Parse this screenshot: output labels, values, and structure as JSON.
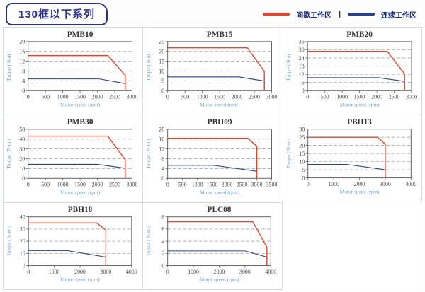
{
  "header": {
    "title": "130框以下系列",
    "legend": {
      "items": [
        {
          "label": "间歇工作区",
          "color": "#e8432a"
        },
        {
          "label": "连续工作区",
          "color": "#27408f"
        }
      ],
      "divider": "|"
    }
  },
  "colors": {
    "accent_navy": "#2e3192",
    "legend_text": "#1b2f7e",
    "intermittent_line": "#e8432a",
    "continuous_line": "#27408f",
    "grid_line": "#9a9a9a",
    "plot_border": "#5f6368",
    "tick_text": "#4a4a4a",
    "axis_label_text": "#6f9fd6",
    "chart_title_text": "#333333",
    "cell_border": "#d5dbe6"
  },
  "chart_data": [
    {
      "type": "line",
      "title": "PMB10",
      "xlabel": "Motor speed (rpm)",
      "ylabel": "Torque ( N·m )",
      "xlim": [
        0,
        3000
      ],
      "xticks": [
        0,
        500,
        1000,
        1500,
        2000,
        2500,
        3000
      ],
      "ylim": [
        0,
        20
      ],
      "yticks": [
        0,
        4,
        8,
        12,
        16,
        20
      ],
      "grid": "dashed-horizontal",
      "legend_position": "none",
      "series": [
        {
          "name": "间歇工作区",
          "color": "#e8432a",
          "points": [
            [
              0,
              14.3
            ],
            [
              2300,
              14.3
            ],
            [
              2800,
              6.3
            ],
            [
              2800,
              0
            ]
          ]
        },
        {
          "name": "连续工作区",
          "color": "#27408f",
          "points": [
            [
              0,
              4.8
            ],
            [
              2050,
              4.8
            ],
            [
              2800,
              2.9
            ],
            [
              2800,
              0
            ]
          ]
        }
      ]
    },
    {
      "type": "line",
      "title": "PMB15",
      "xlabel": "Motor speed (rpm)",
      "ylabel": "Torque ( N·m )",
      "xlim": [
        0,
        3000
      ],
      "xticks": [
        0,
        500,
        1000,
        1500,
        2000,
        2500,
        3000
      ],
      "ylim": [
        0,
        25
      ],
      "yticks": [
        0,
        5,
        10,
        15,
        20,
        25
      ],
      "grid": "dashed-horizontal",
      "legend_position": "none",
      "series": [
        {
          "name": "间歇工作区",
          "color": "#e8432a",
          "points": [
            [
              0,
              21.8
            ],
            [
              2300,
              21.8
            ],
            [
              2790,
              9.8
            ],
            [
              2790,
              0
            ]
          ]
        },
        {
          "name": "连续工作区",
          "color": "#27408f",
          "points": [
            [
              0,
              7
            ],
            [
              2050,
              7
            ],
            [
              2790,
              4.9
            ],
            [
              2790,
              0
            ]
          ]
        }
      ]
    },
    {
      "type": "line",
      "title": "PMB20",
      "xlabel": "Motor speed (rpm)",
      "ylabel": "Torque ( N·m )",
      "xlim": [
        0,
        3000
      ],
      "xticks": [
        0,
        500,
        1000,
        1500,
        2000,
        2500,
        3000
      ],
      "ylim": [
        0,
        36
      ],
      "yticks": [
        0,
        6,
        12,
        18,
        24,
        30,
        36
      ],
      "grid": "dashed-horizontal",
      "legend_position": "none",
      "series": [
        {
          "name": "间歇工作区",
          "color": "#e8432a",
          "points": [
            [
              0,
              28.8
            ],
            [
              2300,
              28.8
            ],
            [
              2800,
              12.3
            ],
            [
              2800,
              0
            ]
          ]
        },
        {
          "name": "连续工作区",
          "color": "#27408f",
          "points": [
            [
              0,
              9.5
            ],
            [
              2050,
              9.5
            ],
            [
              2800,
              6.8
            ],
            [
              2800,
              0
            ]
          ]
        }
      ]
    },
    {
      "type": "line",
      "title": "PMB30",
      "xlabel": "Motor speed (rpm)",
      "ylabel": "Torque ( N·m )",
      "xlim": [
        0,
        3000
      ],
      "xticks": [
        0,
        500,
        1000,
        1500,
        2000,
        2500,
        3000
      ],
      "ylim": [
        0,
        50
      ],
      "yticks": [
        0,
        10,
        20,
        30,
        40,
        50
      ],
      "grid": "dashed-horizontal",
      "legend_position": "none",
      "series": [
        {
          "name": "间歇工作区",
          "color": "#e8432a",
          "points": [
            [
              0,
              43
            ],
            [
              2300,
              43
            ],
            [
              2800,
              19
            ],
            [
              2800,
              0
            ]
          ]
        },
        {
          "name": "连续工作区",
          "color": "#27408f",
          "points": [
            [
              0,
              14.3
            ],
            [
              2000,
              14.3
            ],
            [
              2800,
              10.3
            ],
            [
              2800,
              0
            ]
          ]
        }
      ]
    },
    {
      "type": "line",
      "title": "PBH09",
      "xlabel": "Motor speed (rpm)",
      "ylabel": "Torque ( N·m )",
      "xlim": [
        0,
        3500
      ],
      "xticks": [
        0,
        500,
        1000,
        1500,
        2000,
        2500,
        3000,
        3500
      ],
      "ylim": [
        0,
        20
      ],
      "yticks": [
        0,
        4,
        8,
        12,
        16,
        20
      ],
      "grid": "dashed-horizontal",
      "legend_position": "none",
      "series": [
        {
          "name": "间歇工作区",
          "color": "#e8432a",
          "points": [
            [
              0,
              16.3
            ],
            [
              2700,
              16.3
            ],
            [
              3000,
              13.1
            ],
            [
              3000,
              0
            ]
          ]
        },
        {
          "name": "连续工作区",
          "color": "#27408f",
          "points": [
            [
              0,
              5.3
            ],
            [
              1550,
              5.3
            ],
            [
              3000,
              2.9
            ],
            [
              3000,
              0
            ]
          ]
        }
      ]
    },
    {
      "type": "line",
      "title": "PBH13",
      "xlabel": "Motor speed (rpm)",
      "ylabel": "Torque ( N·m )",
      "xlim": [
        0,
        4000
      ],
      "xticks": [
        0,
        1000,
        2000,
        3000,
        4000
      ],
      "ylim": [
        0,
        30
      ],
      "yticks": [
        0,
        5,
        10,
        15,
        20,
        25,
        30
      ],
      "grid": "dashed-horizontal",
      "legend_position": "none",
      "series": [
        {
          "name": "间歇工作区",
          "color": "#e8432a",
          "points": [
            [
              0,
              25
            ],
            [
              2700,
              25
            ],
            [
              3000,
              20.8
            ],
            [
              3000,
              0
            ]
          ]
        },
        {
          "name": "连续工作区",
          "color": "#27408f",
          "points": [
            [
              0,
              8.3
            ],
            [
              1500,
              8.3
            ],
            [
              3000,
              5
            ],
            [
              3000,
              0
            ]
          ]
        }
      ]
    },
    {
      "type": "line",
      "title": "PBH18",
      "xlabel": "Motor speed (rpm)",
      "ylabel": "Torque ( N·m )",
      "xlim": [
        0,
        4000
      ],
      "xticks": [
        0,
        1000,
        2000,
        3000,
        4000
      ],
      "ylim": [
        0,
        40
      ],
      "yticks": [
        0,
        10,
        20,
        30,
        40
      ],
      "grid": "dashed-horizontal",
      "legend_position": "none",
      "series": [
        {
          "name": "间歇工作区",
          "color": "#e8432a",
          "points": [
            [
              0,
              35
            ],
            [
              2650,
              35
            ],
            [
              3000,
              29
            ],
            [
              3000,
              0
            ]
          ]
        },
        {
          "name": "连续工作区",
          "color": "#27408f",
          "points": [
            [
              0,
              12.3
            ],
            [
              1500,
              12.3
            ],
            [
              3000,
              7
            ],
            [
              3000,
              0
            ]
          ]
        }
      ]
    },
    {
      "type": "line",
      "title": "PLC08",
      "xlabel": "Motor speed (rpm)",
      "ylabel": "Torque ( N·m )",
      "xlim": [
        0,
        4000
      ],
      "xticks": [
        0,
        1000,
        2000,
        3000,
        4000
      ],
      "ylim": [
        0,
        8
      ],
      "yticks": [
        0,
        2,
        4,
        6,
        8
      ],
      "grid": "dashed-horizontal",
      "legend_position": "none",
      "series": [
        {
          "name": "间歇工作区",
          "color": "#e8432a",
          "points": [
            [
              0,
              7.2
            ],
            [
              3300,
              7.2
            ],
            [
              3850,
              3
            ],
            [
              3850,
              0
            ]
          ]
        },
        {
          "name": "连续工作区",
          "color": "#27408f",
          "points": [
            [
              0,
              2.4
            ],
            [
              3000,
              2.4
            ],
            [
              3850,
              1.4
            ],
            [
              3850,
              0
            ]
          ]
        }
      ]
    }
  ]
}
